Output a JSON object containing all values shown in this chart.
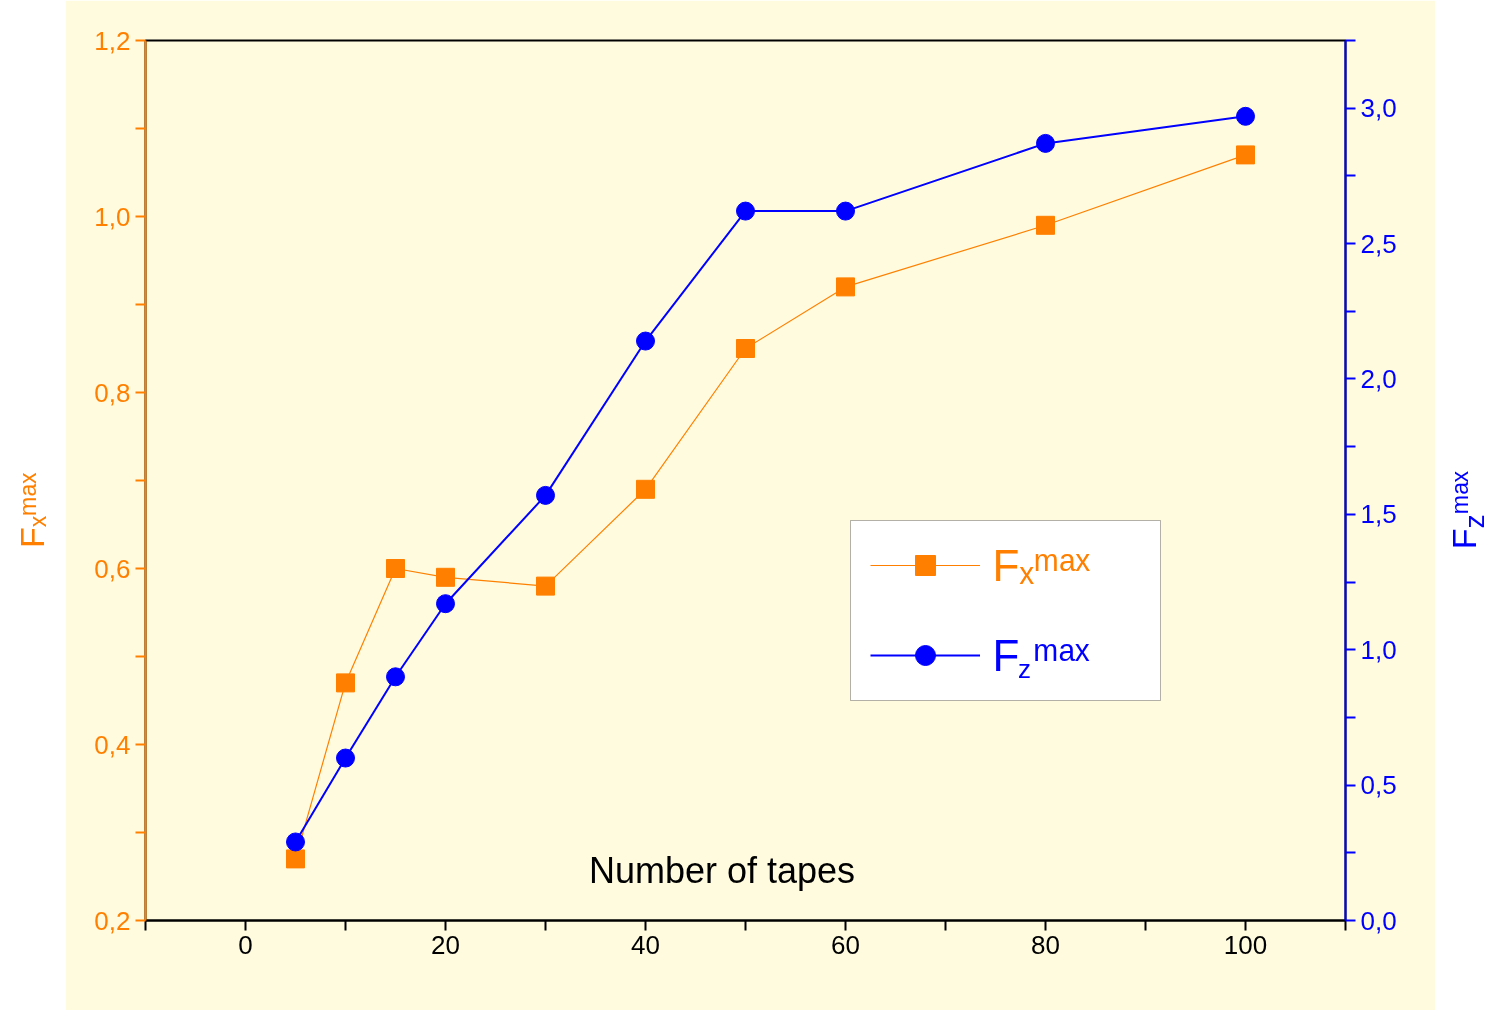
{
  "chart_data": {
    "type": "line",
    "xlabel": "Number of tapes",
    "ylabel": "Fₓᵐᵃˣ",
    "y2label": "F$_{z}$ᵐᵃˣ",
    "x": [
      5,
      10,
      15,
      20,
      30,
      40,
      50,
      60,
      80,
      100
    ],
    "series": [
      {
        "name": "Fₓᵐᵃˣ",
        "color": "#ff8000",
        "marker": "square",
        "values": [
          0.27,
          0.47,
          0.6,
          0.59,
          0.58,
          0.69,
          0.85,
          0.92,
          0.99,
          1.07
        ]
      },
      {
        "name": "F$_{z}$ᵐᵃˣ",
        "color": "#0000ff",
        "marker": "circle",
        "axis": "y2",
        "values": [
          0.29,
          0.6,
          0.9,
          1.17,
          1.57,
          2.14,
          2.62,
          2.62,
          2.87,
          2.97
        ]
      }
    ],
    "xlim": [
      -10,
      110
    ],
    "xticks": [
      {
        "value": -10,
        "label": null
      },
      0,
      {
        "value": 10,
        "label": null
      },
      20,
      {
        "value": 30,
        "label": null
      },
      40,
      {
        "value": 50,
        "label": null
      },
      60,
      {
        "value": 70,
        "label": null
      },
      80,
      {
        "value": 90,
        "label": null
      },
      100,
      {
        "value": 110,
        "label": null
      }
    ],
    "ylim": [
      0.2,
      1.2
    ],
    "yticks": [
      {
        "value": 0.2,
        "label": "0,2"
      },
      {
        "value": 0.3,
        "label": null
      },
      {
        "value": 0.4,
        "label": "0,4"
      },
      {
        "value": 0.5,
        "label": null
      },
      {
        "value": 0.6,
        "label": "0,6"
      },
      {
        "value": 0.7,
        "label": null
      },
      {
        "value": 0.8,
        "label": "0,8"
      },
      {
        "value": 0.9,
        "label": null
      },
      {
        "value": 1.0,
        "label": "1,0"
      },
      {
        "value": 1.1,
        "label": null
      },
      {
        "value": 1.2,
        "label": "1,2"
      }
    ],
    "y2lim": [
      0,
      3.25
    ],
    "y2ticks": [
      {
        "value": 0,
        "label": "0,0"
      },
      {
        "value": 0.25,
        "label": null
      },
      {
        "value": 0.5,
        "label": "0,5"
      },
      {
        "value": 0.75,
        "label": null
      },
      {
        "value": 1.0,
        "label": "1,0"
      },
      {
        "value": 1.25,
        "label": null
      },
      {
        "value": 1.5,
        "label": "1,5"
      },
      {
        "value": 1.75,
        "label": null
      },
      {
        "value": 2.0,
        "label": "2,0"
      },
      {
        "value": 2.25,
        "label": null
      },
      {
        "value": 2.5,
        "label": "2,5"
      },
      {
        "value": 2.75,
        "label": null
      },
      {
        "value": 3.0,
        "label": "3,0"
      },
      {
        "value": 3.25,
        "label": null
      }
    ],
    "legend": "right",
    "grid": false,
    "line_style": "solid"
  }
}
